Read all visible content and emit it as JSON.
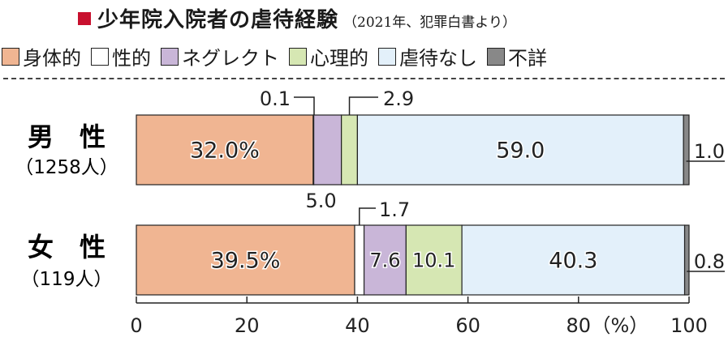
{
  "title": "少年院入院者の虐待経験",
  "subtitle": "（2021年、犯罪白書より）",
  "title_mark_color": "#c8102e",
  "legend": [
    {
      "label": "身体的",
      "color": "#f0b592"
    },
    {
      "label": "性的",
      "color": "#ffffff"
    },
    {
      "label": "ネグレクト",
      "color": "#c9b6d8"
    },
    {
      "label": "心理的",
      "color": "#d6e7b3"
    },
    {
      "label": "虐待なし",
      "color": "#e3f0fa"
    },
    {
      "label": "不詳",
      "color": "#888888"
    }
  ],
  "chart_data": {
    "type": "bar",
    "orientation": "horizontal",
    "stacked": true,
    "categories": [
      {
        "name": "男　性",
        "count": "（1258人）"
      },
      {
        "name": "女　性",
        "count": "（119人）"
      }
    ],
    "series": [
      {
        "name": "身体的",
        "color": "#f0b592",
        "values": [
          32.0,
          39.5
        ],
        "labels": [
          "32.0%",
          "39.5%"
        ]
      },
      {
        "name": "性的",
        "color": "#ffffff",
        "values": [
          0.1,
          1.7
        ],
        "labels": [
          "0.1",
          "1.7"
        ]
      },
      {
        "name": "ネグレクト",
        "color": "#c9b6d8",
        "values": [
          5.0,
          7.6
        ],
        "labels": [
          "5.0",
          "7.6"
        ]
      },
      {
        "name": "心理的",
        "color": "#d6e7b3",
        "values": [
          2.9,
          10.1
        ],
        "labels": [
          "2.9",
          "10.1"
        ]
      },
      {
        "name": "虐待なし",
        "color": "#e3f0fa",
        "values": [
          59.0,
          40.3
        ],
        "labels": [
          "59.0",
          "40.3"
        ]
      },
      {
        "name": "不詳",
        "color": "#888888",
        "values": [
          1.0,
          0.8
        ],
        "labels": [
          "1.0",
          "0.8"
        ]
      }
    ],
    "xlim": [
      0,
      100
    ],
    "xticks": [
      0,
      20,
      40,
      60,
      80,
      100
    ],
    "xunit": "（%）",
    "grid": false,
    "legend_position": "top"
  }
}
